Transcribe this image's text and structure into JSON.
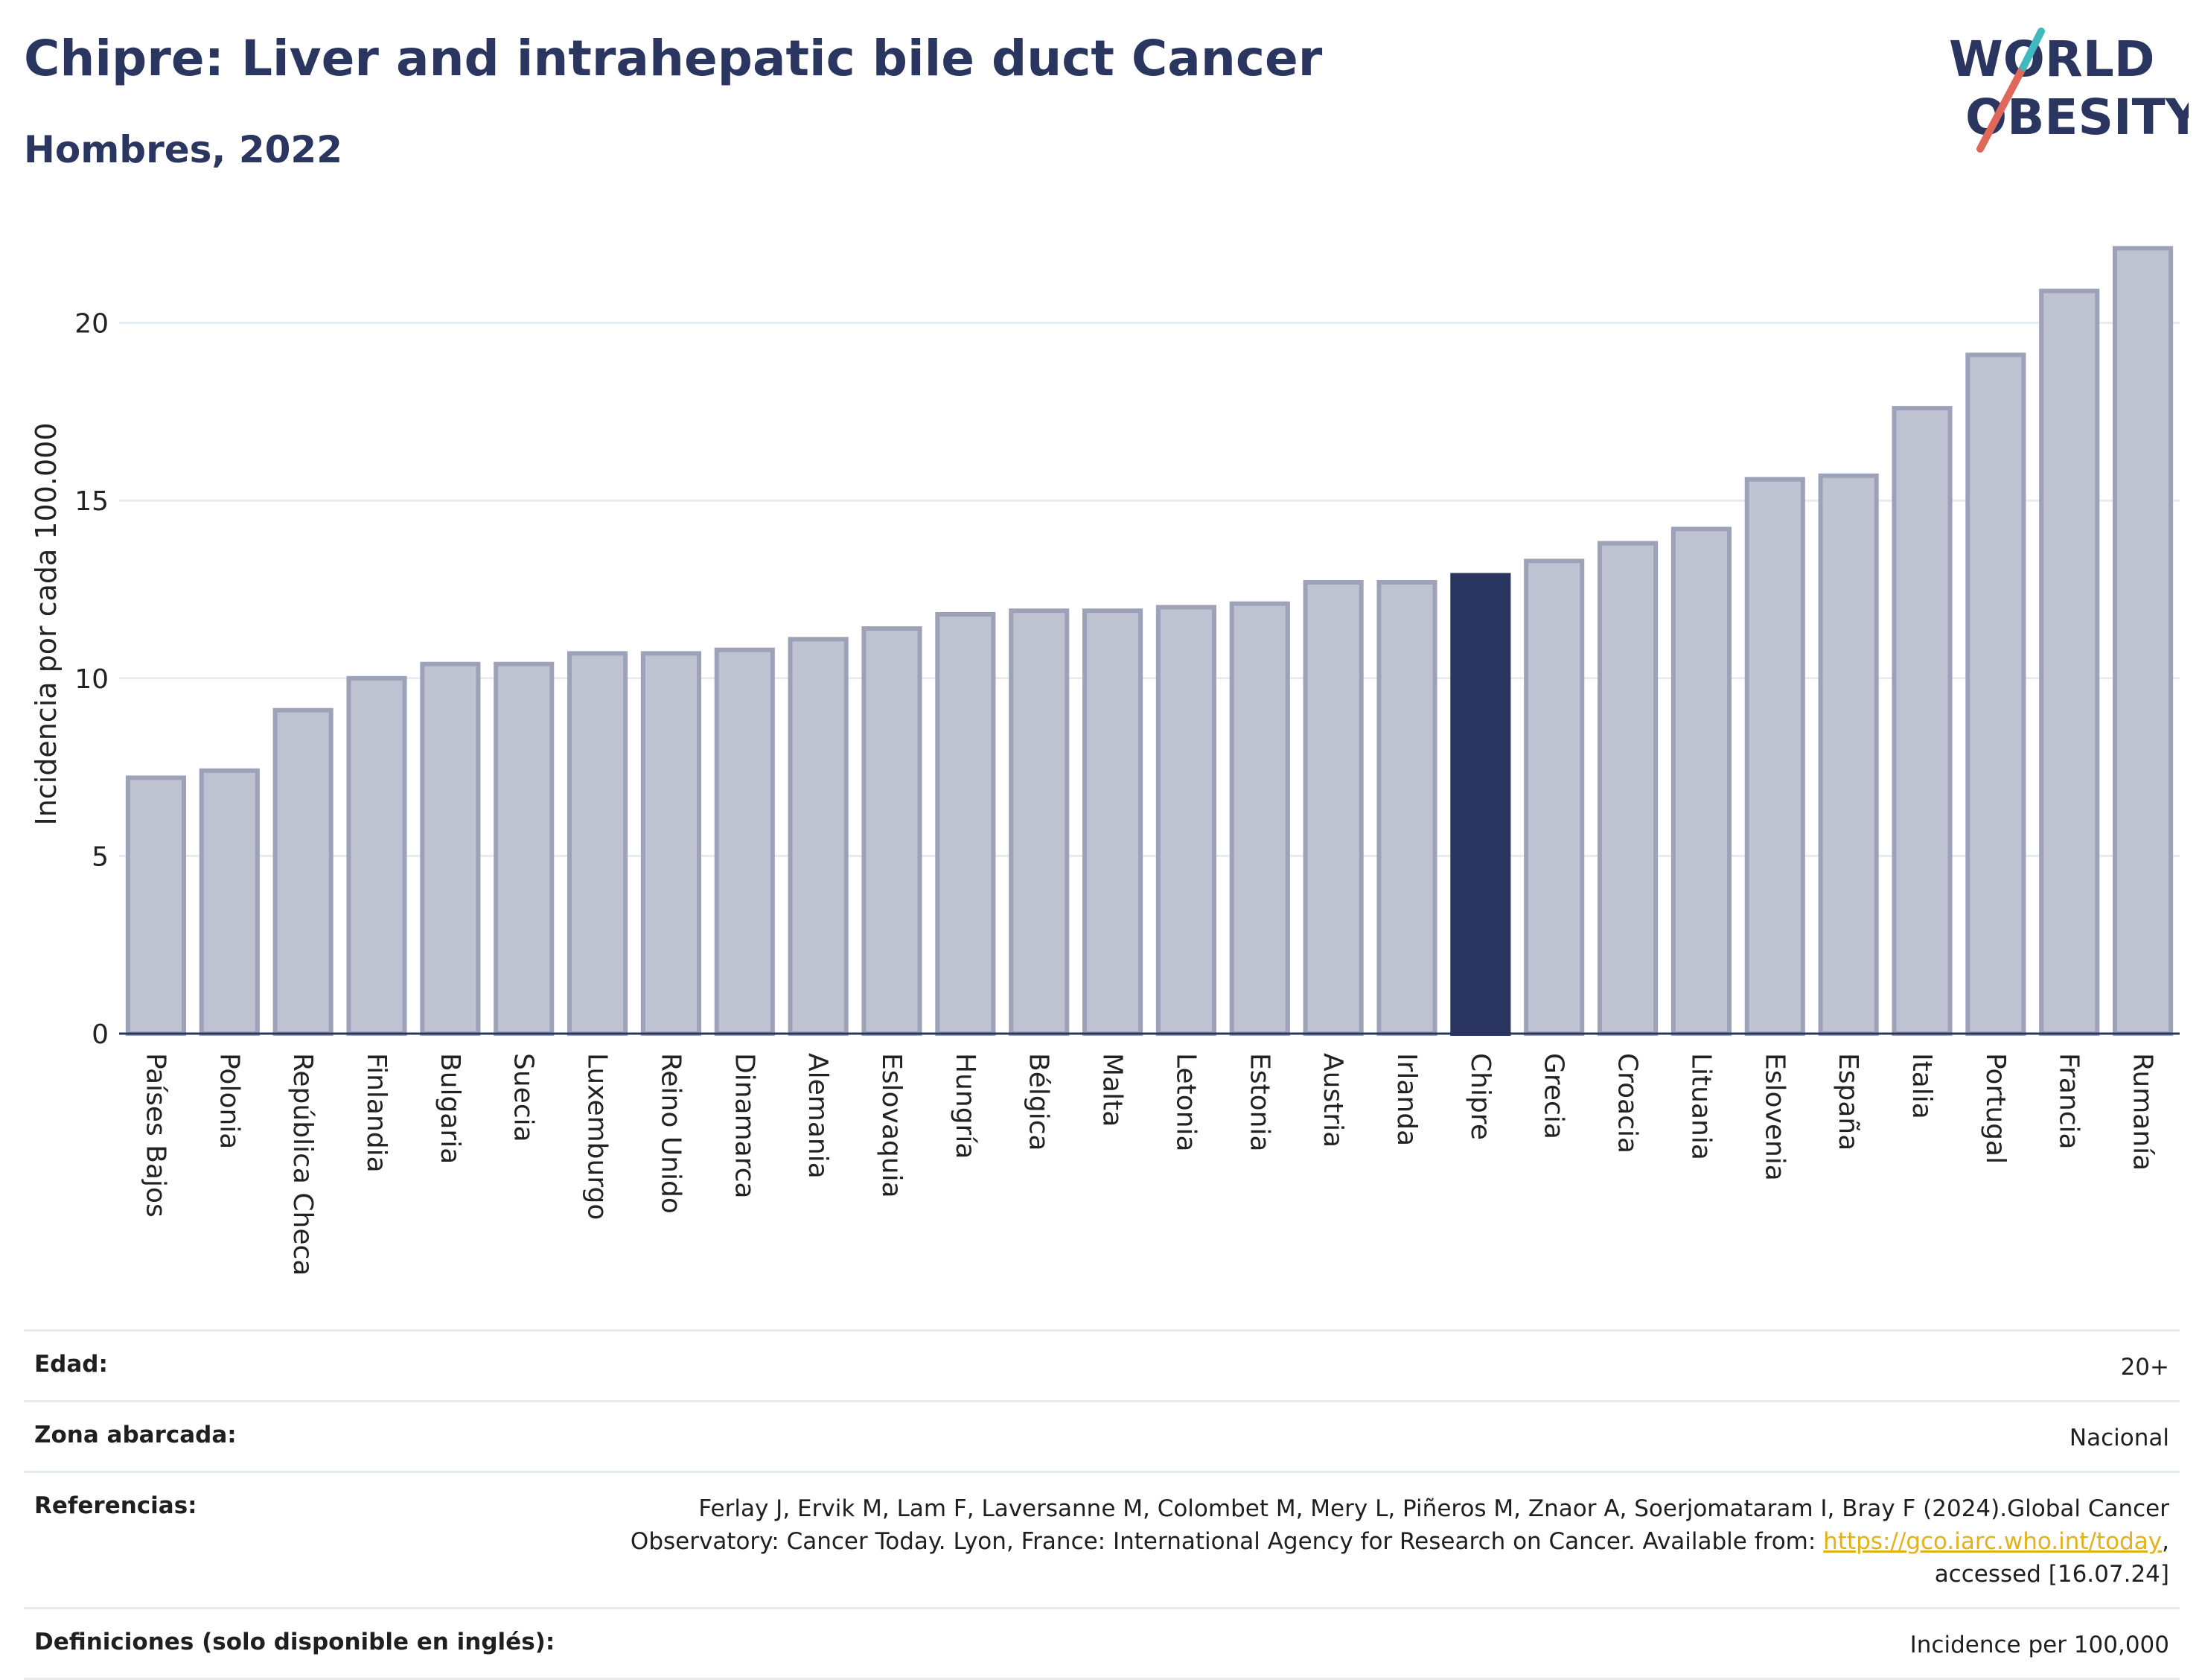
{
  "title": "Chipre: Liver and intrahepatic bile duct Cancer",
  "subtitle": "Hombres, 2022",
  "logo": {
    "line1": "WORLD",
    "line2": "OBESITY"
  },
  "colors": {
    "bar": "#bfc2d1",
    "bar_border": "#9ea2b9",
    "highlight": "#2a3560",
    "title": "#2a3560",
    "link": "#e2b21c"
  },
  "chart_data": {
    "type": "bar",
    "ylabel": "Incidencia por cada 100.000",
    "xlabel": "",
    "ylim": [
      0,
      22.8
    ],
    "yticks": [
      0,
      5,
      10,
      15,
      20
    ],
    "grid": true,
    "highlight": "Chipre",
    "categories": [
      "Países Bajos",
      "Polonia",
      "República Checa",
      "Finlandia",
      "Bulgaria",
      "Suecia",
      "Luxemburgo",
      "Reino Unido",
      "Dinamarca",
      "Alemania",
      "Eslovaquia",
      "Hungría",
      "Bélgica",
      "Malta",
      "Letonia",
      "Estonia",
      "Austria",
      "Irlanda",
      "Chipre",
      "Grecia",
      "Croacia",
      "Lituania",
      "Eslovenia",
      "España",
      "Italia",
      "Portugal",
      "Francia",
      "Rumanía"
    ],
    "values": [
      7.2,
      7.4,
      9.1,
      10.0,
      10.4,
      10.4,
      10.7,
      10.7,
      10.8,
      11.1,
      11.4,
      11.8,
      11.9,
      11.9,
      12.0,
      12.1,
      12.7,
      12.7,
      12.9,
      13.3,
      13.8,
      14.2,
      15.6,
      15.7,
      17.6,
      19.1,
      20.9,
      22.1
    ]
  },
  "info": {
    "age_label": "Edad:",
    "age_value": "20+",
    "zone_label": "Zona abarcada:",
    "zone_value": "Nacional",
    "ref_label": "Referencias:",
    "ref_text_1": "Ferlay J, Ervik M, Lam F, Laversanne M, Colombet M, Mery L, Piñeros M, Znaor A, Soerjomataram I, Bray F (2024).Global Cancer Observatory: Cancer Today. Lyon, France: International Agency for Research on Cancer. Available from: ",
    "ref_link": "https://gco.iarc.who.int/today",
    "ref_text_2": ", accessed [16.07.24]",
    "def_label": "Definiciones (solo disponible en inglés):",
    "def_value": "Incidence per 100,000"
  }
}
